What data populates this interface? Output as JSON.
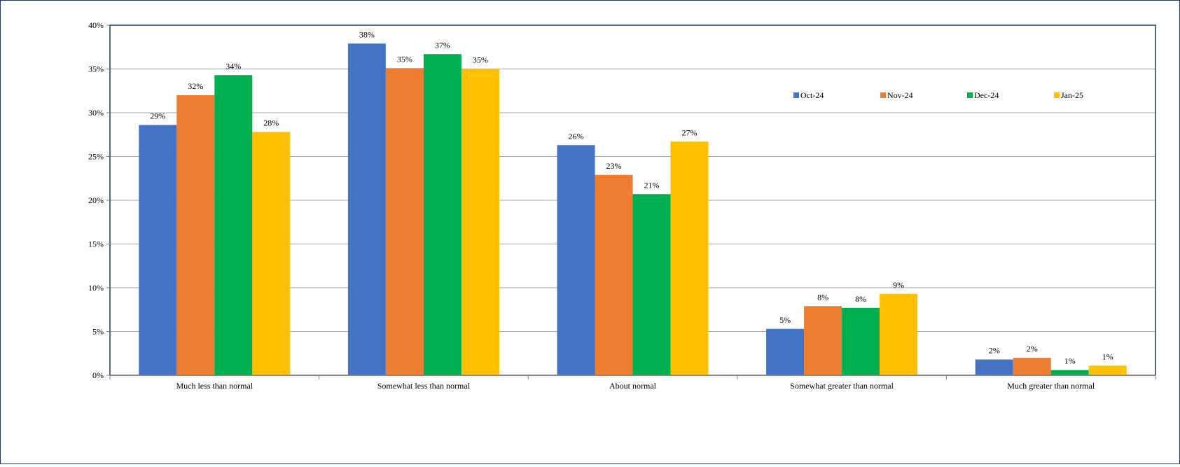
{
  "colors": {
    "frame_border": "#1f3864",
    "plot_border": "#1f3864",
    "gridline": "#a6a6a6",
    "axis": "#7f7f7f"
  },
  "chart_data": {
    "type": "bar",
    "title": "",
    "xlabel": "",
    "ylabel": "",
    "ylim": [
      0,
      40
    ],
    "y_ticks": [
      "0%",
      "5%",
      "10%",
      "15%",
      "20%",
      "25%",
      "30%",
      "35%",
      "40%"
    ],
    "grid": true,
    "legend_position": "top-right",
    "categories": [
      "Much less than normal",
      "Somewhat less than normal",
      "About normal",
      "Somewhat greater than normal",
      "Much greater than normal"
    ],
    "series": [
      {
        "name": "Oct-24",
        "color": "#4472c4",
        "values": [
          28.6,
          37.9,
          26.3,
          5.3,
          1.8
        ],
        "labels": [
          "29%",
          "38%",
          "26%",
          "5%",
          "2%"
        ]
      },
      {
        "name": "Nov-24",
        "color": "#ed7d31",
        "values": [
          32.0,
          35.1,
          22.9,
          7.9,
          2.0
        ],
        "labels": [
          "32%",
          "35%",
          "23%",
          "8%",
          "2%"
        ]
      },
      {
        "name": "Dec-24",
        "color": "#00b050",
        "values": [
          34.3,
          36.7,
          20.7,
          7.7,
          0.6
        ],
        "labels": [
          "34%",
          "37%",
          "21%",
          "8%",
          "1%"
        ]
      },
      {
        "name": "Jan-25",
        "color": "#ffc000",
        "values": [
          27.8,
          35.0,
          26.7,
          9.3,
          1.1
        ],
        "labels": [
          "28%",
          "35%",
          "27%",
          "9%",
          "1%"
        ]
      }
    ]
  }
}
